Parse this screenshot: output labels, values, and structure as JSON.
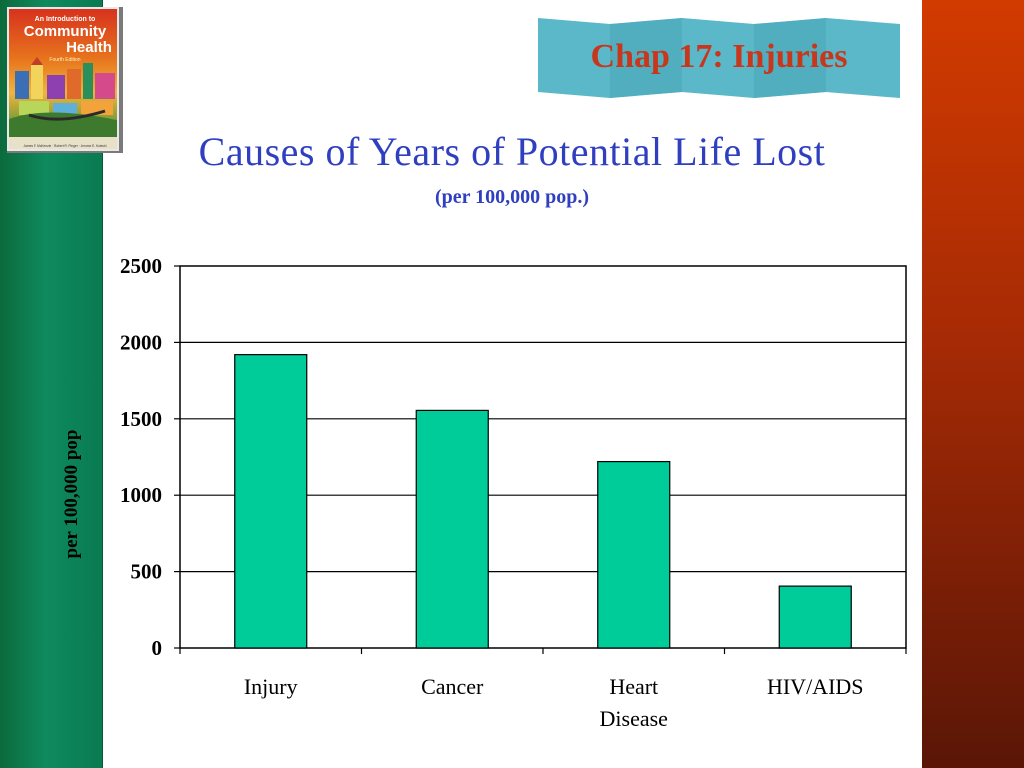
{
  "slide": {
    "banner": "Chap 17: Injuries",
    "title": "Causes of Years of Potential Life Lost",
    "subtitle": "(per 100,000 pop.)",
    "colors": {
      "left_bar": "#0e8a5e",
      "right_bar": "#b52f05",
      "bar_fill": "#00cc99",
      "title": "#2f3fc0",
      "banner_text": "#c8361c",
      "banner_bg": "#5ab8c8"
    }
  },
  "book": {
    "line1": "An Introduction to",
    "line2": "Community",
    "line3": "Health",
    "edition": "Fourth Edition",
    "authors": "James F. McKenzie · Robert R. Pinger · Jerome E. Kotecki"
  },
  "chart_data": {
    "type": "bar",
    "categories": [
      "Injury",
      "Cancer",
      "Heart Disease",
      "HIV/AIDS"
    ],
    "category_lines": [
      [
        "Injury"
      ],
      [
        "Cancer"
      ],
      [
        "Heart",
        "Disease"
      ],
      [
        "HIV/AIDS"
      ]
    ],
    "values": [
      1920,
      1555,
      1220,
      405
    ],
    "ylabel": "per 100,000 pop",
    "ylim": [
      0,
      2500
    ],
    "yticks": [
      0,
      500,
      1000,
      1500,
      2000,
      2500
    ],
    "grid": true,
    "legend": "none"
  }
}
